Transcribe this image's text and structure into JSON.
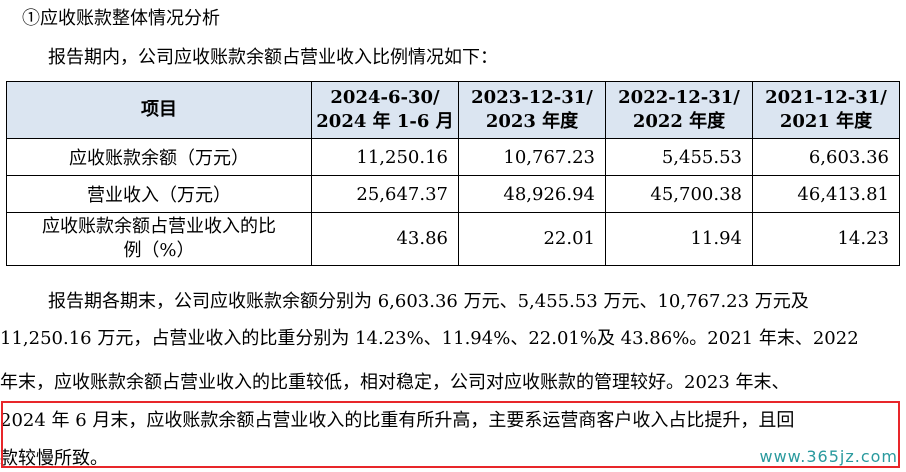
{
  "heading": "①应收账款整体情况分析",
  "intro": "报告期内，公司应收账款余额占营业收入比例情况如下：",
  "table": {
    "headers": [
      {
        "line1": "项目",
        "line2": ""
      },
      {
        "line1": "2024-6-30/",
        "line2": "2024 年 1-6 月"
      },
      {
        "line1": "2023-12-31/",
        "line2": "2023 年度"
      },
      {
        "line1": "2022-12-31/",
        "line2": "2022 年度"
      },
      {
        "line1": "2021-12-31/",
        "line2": "2021 年度"
      }
    ],
    "rows": [
      {
        "label1": "应收账款余额（万元）",
        "label2": "",
        "values": [
          "11,250.16",
          "10,767.23",
          "5,455.53",
          "6,603.36"
        ]
      },
      {
        "label1": "营业收入（万元）",
        "label2": "",
        "values": [
          "25,647.37",
          "48,926.94",
          "45,700.38",
          "46,413.81"
        ]
      },
      {
        "label1": "应收账款余额占营业收入的比",
        "label2": "例（%）",
        "values": [
          "43.86",
          "22.01",
          "11.94",
          "14.23"
        ]
      }
    ]
  },
  "paragraph": {
    "line1": "报告期各期末，公司应收账款余额分别为 6,603.36 万元、5,455.53 万元、10,767.23 万元及",
    "line2": "11,250.16 万元，占营业收入的比重分别为 14.23%、11.94%、22.01%及 43.86%。2021 年末、2022",
    "line3": "年末，应收账款余额占营业收入的比重较低，相对稳定，公司对应收账款的管理较好。2023 年末、",
    "line4": "2024 年 6 月末，应收账款余额占营业收入的比重有所升高，主要系运营商客户收入占比提升，且回",
    "line5": "款较慢所致。"
  },
  "watermark": "www.365jz.com",
  "colors": {
    "header_bg": "#dbe5f1",
    "highlight_border": "#e8262a",
    "watermark": "#2a9a9e"
  }
}
